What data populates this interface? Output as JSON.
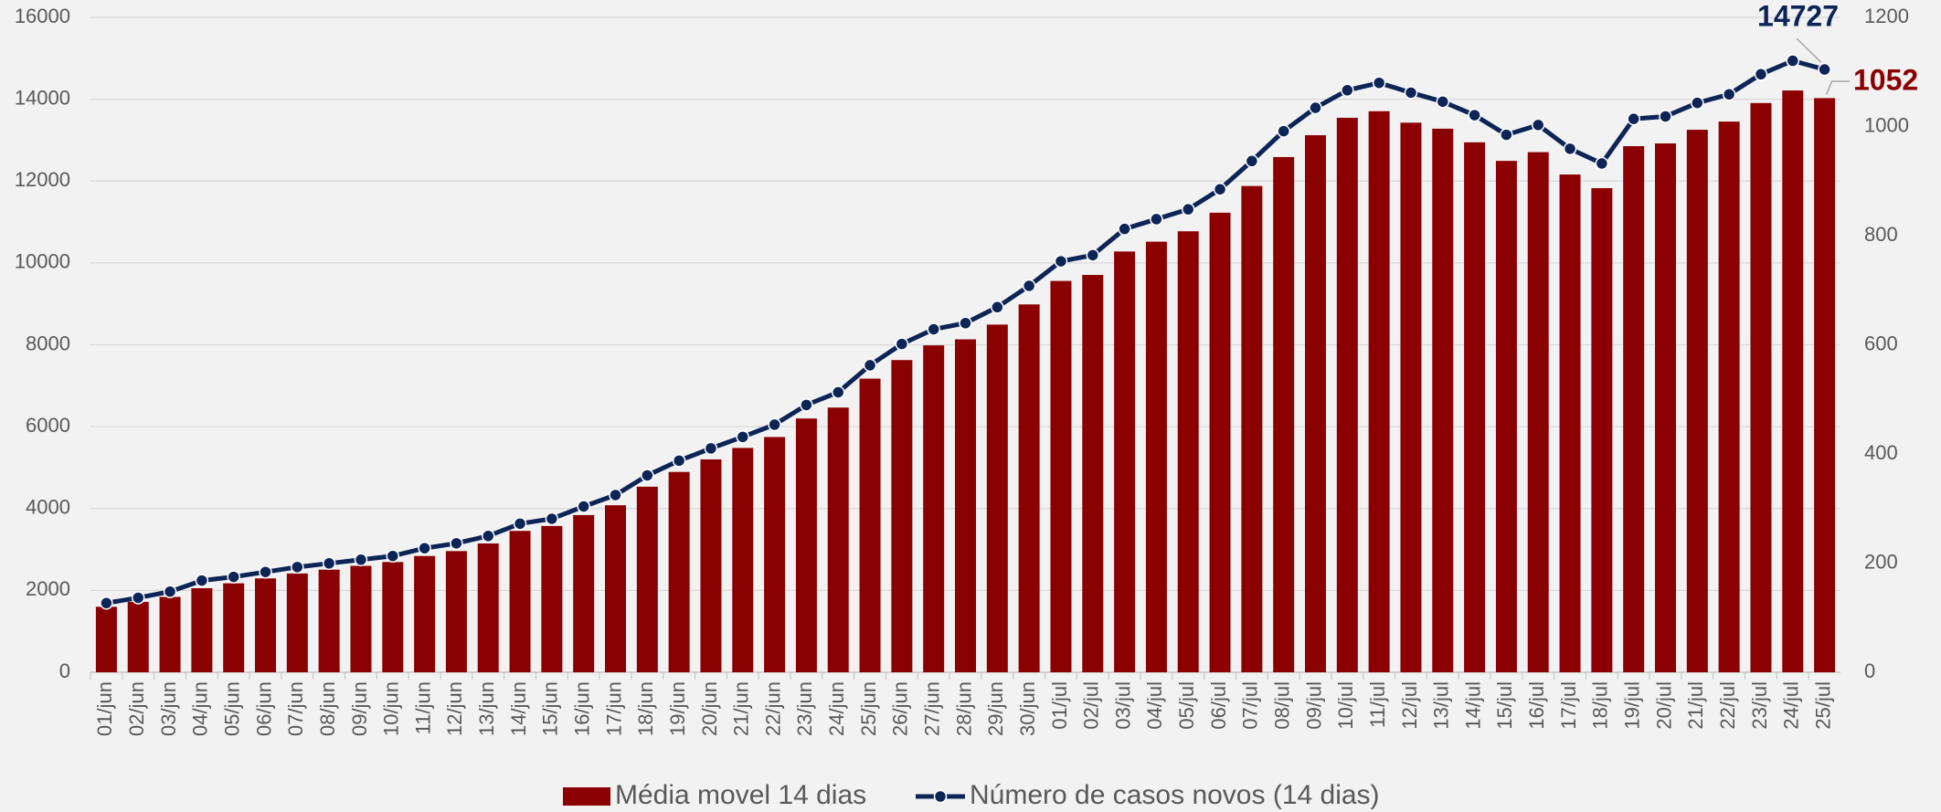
{
  "chart_data": {
    "type": "bar_line",
    "categories": [
      "01/jun",
      "02/jun",
      "03/jun",
      "04/jun",
      "05/jun",
      "06/jun",
      "07/jun",
      "08/jun",
      "09/jun",
      "10/jun",
      "11/jun",
      "12/jun",
      "13/jun",
      "14/jun",
      "15/jun",
      "16/jun",
      "17/jun",
      "18/jun",
      "19/jun",
      "20/jun",
      "21/jun",
      "22/jun",
      "23/jun",
      "24/jun",
      "25/jun",
      "26/jun",
      "27/jun",
      "28/jun",
      "29/jun",
      "30/jun",
      "01/jul",
      "02/jul",
      "03/jul",
      "04/jul",
      "05/jul",
      "06/jul",
      "07/jul",
      "08/jul",
      "09/jul",
      "10/jul",
      "11/jul",
      "12/jul",
      "13/jul",
      "14/jul",
      "15/jul",
      "16/jul",
      "17/jul",
      "18/jul",
      "19/jul",
      "20/jul",
      "21/jul",
      "22/jul",
      "23/jul",
      "24/jul",
      "25/jul"
    ],
    "series": [
      {
        "name": "Média movel 14 dias",
        "type": "bar",
        "axis": "y2",
        "color": "#8b0000",
        "values": [
          120,
          129,
          138,
          154,
          163,
          172,
          181,
          188,
          195,
          202,
          213,
          222,
          236,
          259,
          268,
          288,
          306,
          340,
          367,
          390,
          411,
          431,
          465,
          485,
          538,
          572,
          599,
          610,
          637,
          674,
          717,
          728,
          771,
          789,
          808,
          842,
          891,
          944,
          984,
          1016,
          1028,
          1007,
          996,
          971,
          937,
          953,
          912,
          887,
          964,
          969,
          994,
          1009,
          1043,
          1066,
          1052
        ]
      },
      {
        "name": "Número de casos novos (14 dias)",
        "type": "line",
        "axis": "y",
        "color": "#0d2456",
        "values": [
          1690,
          1820,
          1970,
          2240,
          2330,
          2450,
          2570,
          2660,
          2750,
          2840,
          3030,
          3150,
          3330,
          3630,
          3750,
          4050,
          4330,
          4810,
          5170,
          5470,
          5750,
          6050,
          6530,
          6840,
          7500,
          8020,
          8380,
          8530,
          8920,
          9440,
          10040,
          10190,
          10830,
          11070,
          11310,
          11800,
          12490,
          13220,
          13790,
          14220,
          14400,
          14160,
          13940,
          13610,
          13130,
          13370,
          12790,
          12430,
          13520,
          13580,
          13910,
          14120,
          14610,
          14940,
          14727
        ]
      }
    ],
    "ylim": [
      0,
      16000
    ],
    "yticks": [
      0,
      2000,
      4000,
      6000,
      8000,
      10000,
      12000,
      14000,
      16000
    ],
    "y2lim": [
      0,
      1200
    ],
    "y2ticks": [
      0,
      200,
      400,
      600,
      800,
      1000,
      1200
    ],
    "grid": true,
    "legend": "bottom"
  }
}
